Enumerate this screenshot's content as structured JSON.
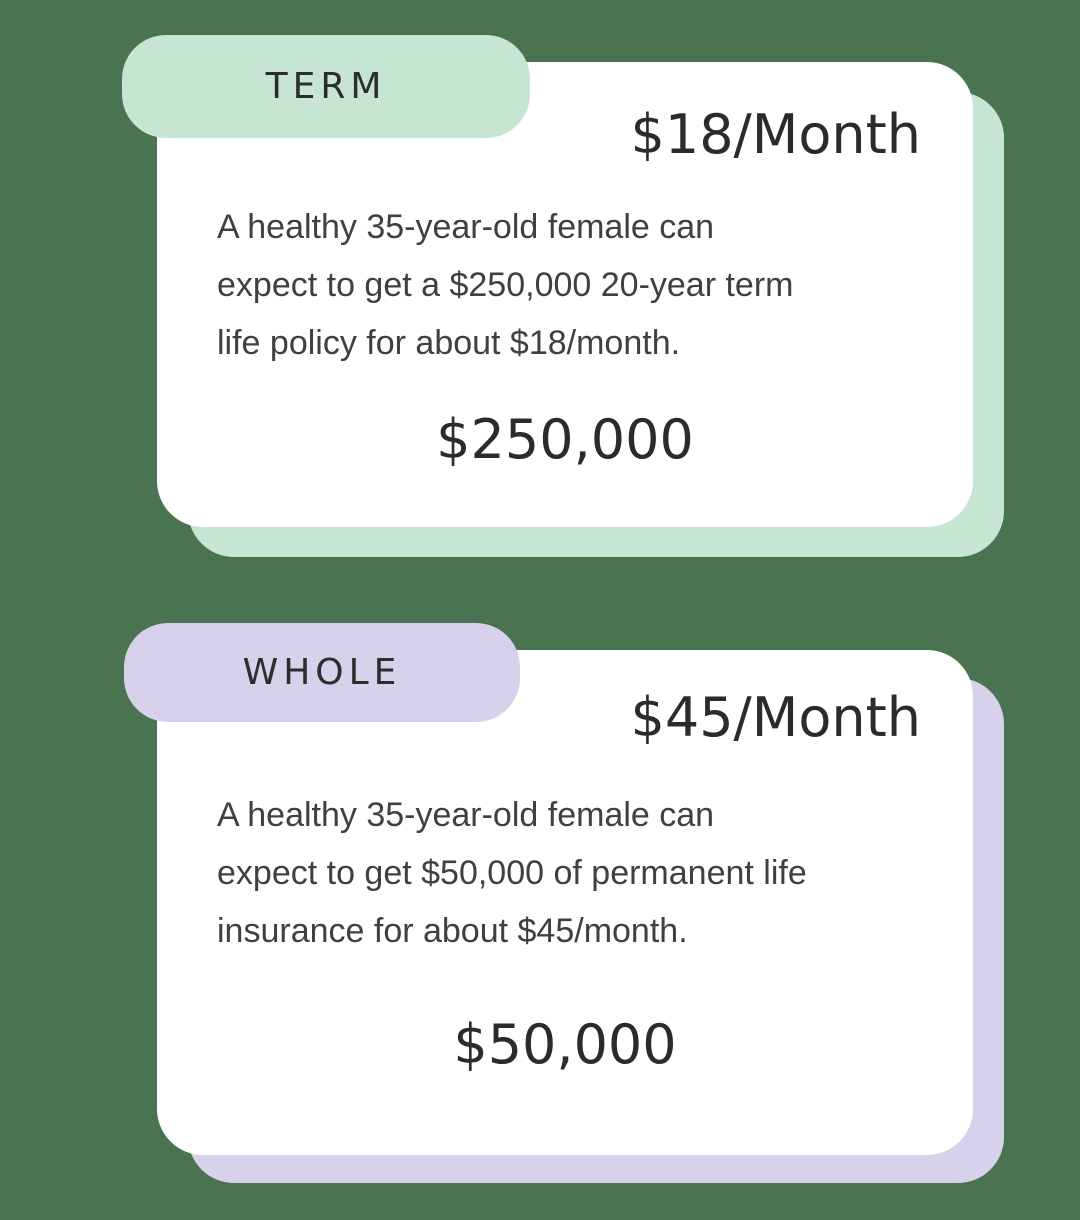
{
  "page": {
    "background_color": "#497351",
    "card_background_color": "#FFFFFF",
    "text_color": "#2B2B2B"
  },
  "cards": [
    {
      "type": "term",
      "badge_label": "TERM",
      "accent_color": "#C6E5D3",
      "price": "$18/Month",
      "description_lines": [
        "A healthy 35-year-old female can",
        "expect to get a $250,000 20-year term",
        "life policy for about $18/month."
      ],
      "coverage_amount": "$250,000"
    },
    {
      "type": "whole",
      "badge_label": "WHOLE",
      "accent_color": "#D7D1EB",
      "price": "$45/Month",
      "description_lines": [
        "A healthy 35-year-old female can",
        "expect to get $50,000 of permanent life",
        "insurance for about $45/month."
      ],
      "coverage_amount": "$50,000"
    }
  ]
}
